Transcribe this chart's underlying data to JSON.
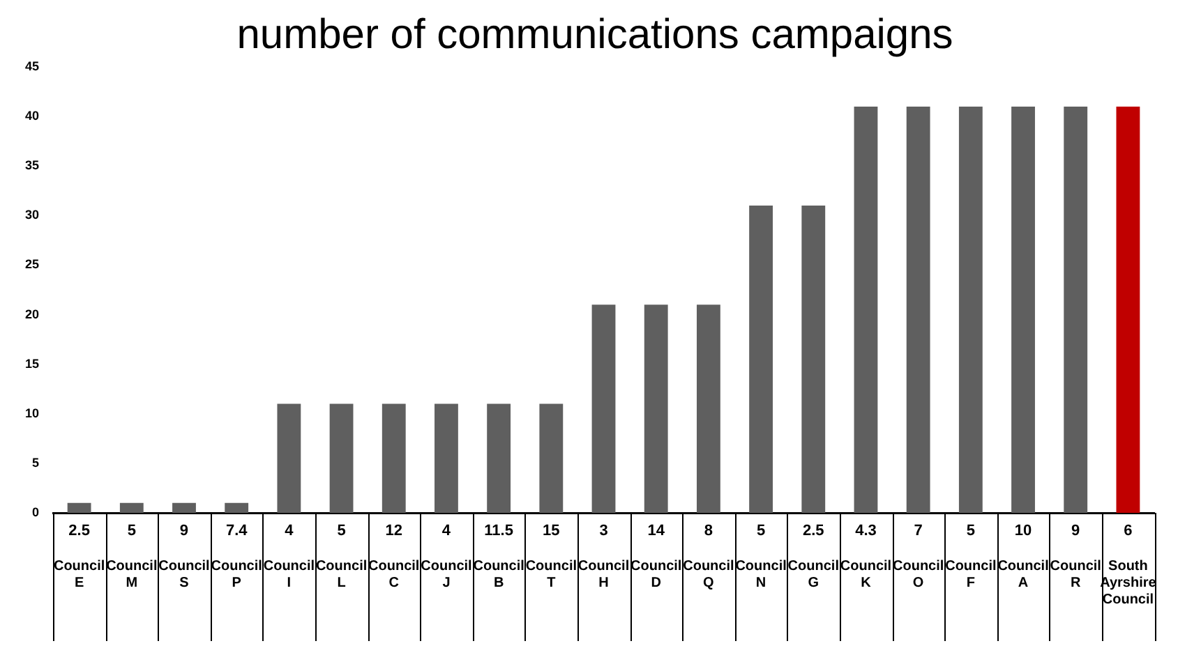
{
  "chart_data": {
    "type": "bar",
    "title": "number of communications campaigns",
    "categories": [
      "Council E",
      "Council M",
      "Council S",
      "Council P",
      "Council I",
      "Council L",
      "Council C",
      "Council J",
      "Council B",
      "Council T",
      "Council H",
      "Council D",
      "Council Q",
      "Council N",
      "Council G",
      "Council K",
      "Council O",
      "Council F",
      "Council A",
      "Council R",
      "South Ayrshire Council"
    ],
    "values": [
      1,
      1,
      1,
      1,
      11,
      11,
      11,
      11,
      11,
      11,
      21,
      21,
      21,
      31,
      31,
      41,
      41,
      41,
      41,
      41,
      41
    ],
    "colors": [
      "#5f5f5f",
      "#5f5f5f",
      "#5f5f5f",
      "#5f5f5f",
      "#5f5f5f",
      "#5f5f5f",
      "#5f5f5f",
      "#5f5f5f",
      "#5f5f5f",
      "#5f5f5f",
      "#5f5f5f",
      "#5f5f5f",
      "#5f5f5f",
      "#5f5f5f",
      "#5f5f5f",
      "#5f5f5f",
      "#5f5f5f",
      "#5f5f5f",
      "#5f5f5f",
      "#5f5f5f",
      "#c00000"
    ],
    "ylim": [
      0,
      45
    ],
    "yticks": [
      0,
      5,
      10,
      15,
      20,
      25,
      30,
      35,
      40,
      45
    ],
    "grid": false,
    "legend": false,
    "annotations": [
      "2.5",
      "5",
      "9",
      "7.4",
      "4",
      "5",
      "12",
      "4",
      "11.5",
      "15",
      "3",
      "14",
      "8",
      "5",
      "2.5",
      "4.3",
      "7",
      "5",
      "10",
      "9",
      "6"
    ]
  }
}
